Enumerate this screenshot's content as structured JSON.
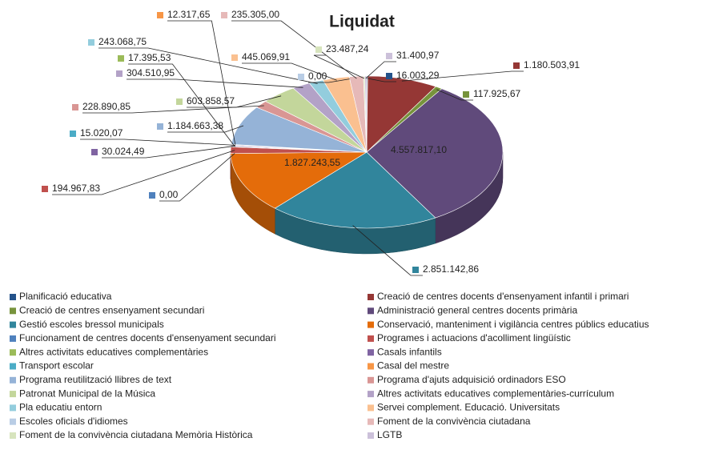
{
  "chart_data": {
    "type": "pie",
    "title": "Liquidat",
    "categories": [
      "Planificació educativa",
      "Creació de centres docents d'ensenyament infantil i primari",
      "Creació de centres ensenyament secundari",
      "Administració general centres docents primària",
      "Gestió escoles bressol municipals",
      "Conservació, manteniment i vigilància centres públics educatius",
      "Funcionament de centres docents d'ensenyament secundari",
      "Programes i actuacions d'acolliment lingüístic",
      "Altres activitats educatives complementàries",
      "Casals infantils",
      "Transport escolar",
      "Casal del mestre",
      "Programa reutilització llibres de text",
      "Programa d'ajuts adquisició ordinadors ESO",
      "Patronat Municipal de la Música",
      "Altres activitats educatives complementàries-currículum",
      "Pla educatiu entorn",
      "Servei complement. Educació. Universitats",
      "Escoles oficials d'idiomes",
      "Foment de la convivència ciutadana",
      "Foment de la convivència ciutadana Memòria Històrica",
      "LGTB"
    ],
    "values": [
      16003.29,
      1180503.91,
      117925.67,
      4557817.1,
      2851142.86,
      1827243.55,
      0,
      194967.83,
      17395.53,
      30024.49,
      15020.07,
      12317.65,
      1184663.38,
      228890.85,
      603858.57,
      304510.95,
      243068.75,
      445069.91,
      0,
      235305.0,
      23487.24,
      31400.97
    ],
    "value_labels": [
      "16.003,29",
      "1.180.503,91",
      "117.925,67",
      "4.557.817,10",
      "2.851.142,86",
      "1.827.243,55",
      "0,00",
      "194.967,83",
      "17.395,53",
      "30.024,49",
      "15.020,07",
      "12.317,65",
      "1.184.663,38",
      "228.890,85",
      "603.858,57",
      "304.510,95",
      "243.068,75",
      "445.069,91",
      "0,00",
      "235.305,00",
      "23.487,24",
      "31.400,97"
    ],
    "colors": [
      "#24528a",
      "#953735",
      "#77933c",
      "#604a7b",
      "#31859c",
      "#e46c0a",
      "#4f81bd",
      "#c0504d",
      "#9bbb59",
      "#8064a2",
      "#4bacc6",
      "#f79646",
      "#95b3d7",
      "#d99694",
      "#c3d69b",
      "#b3a2c7",
      "#93cddd",
      "#fac090",
      "#b9cde5",
      "#e6b9b8",
      "#d7e4bd",
      "#ccc1da"
    ],
    "legend": "bottom"
  }
}
